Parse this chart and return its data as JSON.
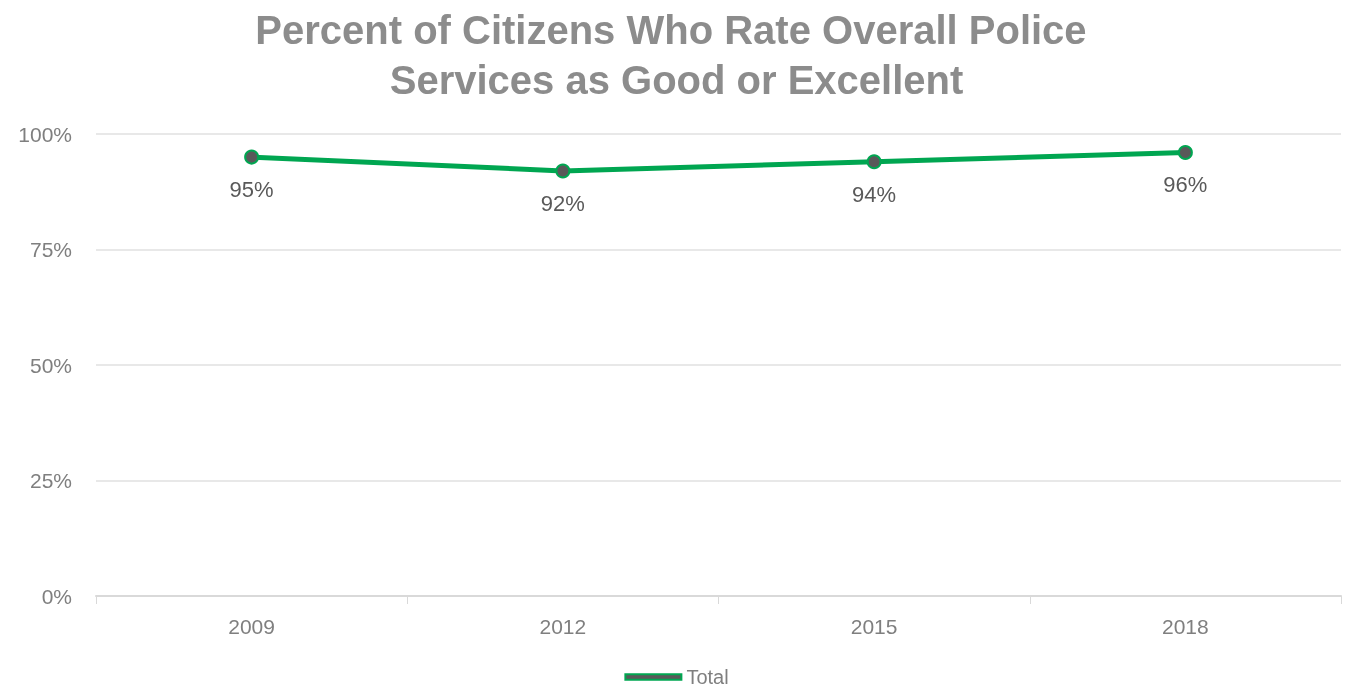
{
  "chart_data": {
    "type": "line",
    "title": "Percent of Citizens Who Rate Overall Police Services as Good or Excellent",
    "categories": [
      "2009",
      "2012",
      "2015",
      "2018"
    ],
    "series": [
      {
        "name": "Total",
        "color": "#00a651",
        "values": [
          95,
          92,
          94,
          96
        ]
      }
    ],
    "value_labels": [
      "95%",
      "92%",
      "94%",
      "96%"
    ],
    "ylim": [
      0,
      100
    ],
    "yticks": [
      {
        "value": 0,
        "label": "0%"
      },
      {
        "value": 25,
        "label": "25%"
      },
      {
        "value": 50,
        "label": "50%"
      },
      {
        "value": 75,
        "label": "75%"
      },
      {
        "value": 100,
        "label": "100%"
      }
    ],
    "grid": "y",
    "legend": "bottom",
    "marker": "circle",
    "line_style": "solid"
  }
}
